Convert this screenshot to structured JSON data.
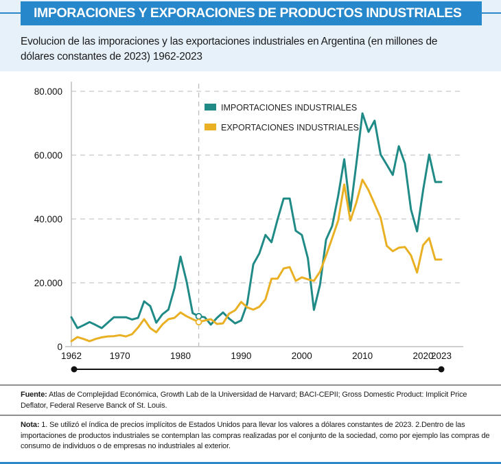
{
  "header": {
    "title": "IMPORACIONES Y EXPORACIONES DE PRODUCTOS INDUSTRIALES",
    "subtitle": "Evolucion de las imporaciones y las exportaciones industriales en Argentina (en millones de dólares constantes de 2023) 1962-2023"
  },
  "colors": {
    "header_bg": "#2687cb",
    "band_bg": "#e6f1f9",
    "imports": "#1f8a86",
    "exports": "#eab024"
  },
  "footer": {
    "source_label": "Fuente:",
    "source_text": " Atlas de Complejidad Económica, Growth Lab de la Universidad de Harvard; BACI-CEPII; Gross Domestic Product: Implicit Price Deflator, Federal Reserve Banck of St. Louis.",
    "note_label": "Nota:",
    "note_text": " 1. Se utilizó el índica de precios implícitos de Estados Unidos para llevar los valores a dólares constantes de 2023. 2.Dentro de las importaciones de productos industriales se contemplan las compras realizadas por el conjunto de la sociedad, como por ejemplo las compras de consumo de individuos o de empresas no industriales al exterior."
  },
  "chart_data": {
    "type": "line",
    "title": "Evolucion de las imporaciones y las exportaciones industriales en Argentina (en millones de dólares constantes de 2023) 1962-2023",
    "xlabel": "",
    "ylabel": "",
    "xlim": [
      1962,
      2023
    ],
    "ylim": [
      0,
      80000
    ],
    "grid": true,
    "legend_position": "top-center",
    "x_ticks": [
      1962,
      1970,
      1980,
      1990,
      2000,
      2010,
      2020,
      2023
    ],
    "x_tick_labels": [
      "1962",
      "1970",
      "1980",
      "1990",
      "2000",
      "2010",
      "2020",
      "2023"
    ],
    "y_ticks": [
      0,
      20000,
      40000,
      60000,
      80000
    ],
    "y_tick_labels": [
      "0",
      "20.000",
      "40.000",
      "60.000",
      "80.000"
    ],
    "reference_line_year": 1983,
    "range_slider": {
      "start": 1962,
      "end": 2023
    },
    "x": [
      1962,
      1963,
      1964,
      1965,
      1966,
      1967,
      1968,
      1969,
      1970,
      1971,
      1972,
      1973,
      1974,
      1975,
      1976,
      1977,
      1978,
      1979,
      1980,
      1981,
      1982,
      1983,
      1984,
      1985,
      1986,
      1987,
      1988,
      1989,
      1990,
      1991,
      1992,
      1993,
      1994,
      1995,
      1996,
      1997,
      1998,
      1999,
      2000,
      2001,
      2002,
      2003,
      2004,
      2005,
      2006,
      2007,
      2008,
      2009,
      2010,
      2011,
      2012,
      2013,
      2014,
      2015,
      2016,
      2017,
      2018,
      2019,
      2020,
      2021,
      2022,
      2023
    ],
    "series": [
      {
        "name": "IMPORTACIONES INDUSTRIALES",
        "color": "#1f8a86",
        "values": [
          9200,
          5800,
          6700,
          7700,
          6800,
          5800,
          7500,
          9200,
          9200,
          9200,
          8500,
          9000,
          14200,
          12700,
          7500,
          10100,
          11600,
          18300,
          28200,
          20400,
          10500,
          9500,
          9200,
          6900,
          9000,
          10700,
          8800,
          7300,
          8200,
          13500,
          25800,
          29200,
          35000,
          32700,
          39800,
          46400,
          46400,
          36300,
          35000,
          27700,
          11500,
          19400,
          33500,
          37800,
          47300,
          58700,
          42500,
          57400,
          73100,
          67300,
          70800,
          60200,
          57000,
          53800,
          62800,
          57400,
          43000,
          36100,
          49000,
          60200,
          51600,
          51600
        ]
      },
      {
        "name": "EXPORTACIONES INDUSTRIALES",
        "color": "#eab024",
        "values": [
          1700,
          3000,
          2400,
          1700,
          2400,
          2900,
          3200,
          3300,
          3600,
          3200,
          3900,
          6000,
          8600,
          5800,
          4500,
          6900,
          8600,
          9000,
          10700,
          9500,
          8600,
          7700,
          8200,
          8600,
          7100,
          7300,
          10300,
          11400,
          14000,
          12300,
          11600,
          12500,
          14800,
          21300,
          21300,
          24500,
          24900,
          20600,
          21700,
          21100,
          20600,
          23500,
          28500,
          34000,
          39500,
          50800,
          39500,
          45200,
          52300,
          49000,
          44700,
          40400,
          31600,
          29900,
          31000,
          31200,
          28600,
          23200,
          31800,
          34000,
          27300,
          27300
        ]
      }
    ]
  }
}
